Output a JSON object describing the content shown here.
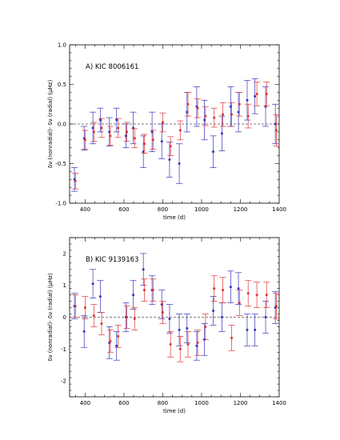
{
  "chart_data": [
    {
      "type": "scatter",
      "panel_label": "A) KIC 8006161",
      "xlabel": "time (d)",
      "ylabel": "δν (nonradial)- δν (radial)  (μHz)",
      "xlim": [
        320,
        1400
      ],
      "ylim": [
        -1.0,
        1.0
      ],
      "x_ticks": [
        400,
        600,
        800,
        1000,
        1200,
        1400
      ],
      "y_ticks": [
        -1.0,
        -0.5,
        0.0,
        0.5,
        1.0
      ],
      "x_tick_labels": [
        "400",
        "600",
        "800",
        "1000",
        "1200",
        "1400"
      ],
      "y_tick_labels": [
        "-1.0",
        "-0.5",
        "0.0",
        "0.5",
        "1.0"
      ],
      "reference_line": 0,
      "series": [
        {
          "color": "#3333bb",
          "points": [
            {
              "x": 345,
              "y": -0.7,
              "err": 0.15
            },
            {
              "x": 395,
              "y": -0.18,
              "err": 0.15
            },
            {
              "x": 440,
              "y": -0.05,
              "err": 0.2
            },
            {
              "x": 478,
              "y": 0.05,
              "err": 0.15
            },
            {
              "x": 525,
              "y": -0.1,
              "err": 0.18
            },
            {
              "x": 562,
              "y": 0.05,
              "err": 0.15
            },
            {
              "x": 610,
              "y": -0.15,
              "err": 0.15
            },
            {
              "x": 648,
              "y": -0.05,
              "err": 0.2
            },
            {
              "x": 700,
              "y": -0.35,
              "err": 0.2
            },
            {
              "x": 745,
              "y": -0.1,
              "err": 0.25
            },
            {
              "x": 795,
              "y": -0.22,
              "err": 0.22
            },
            {
              "x": 835,
              "y": -0.45,
              "err": 0.22
            },
            {
              "x": 885,
              "y": -0.5,
              "err": 0.25
            },
            {
              "x": 925,
              "y": 0.15,
              "err": 0.25
            },
            {
              "x": 975,
              "y": 0.22,
              "err": 0.25
            },
            {
              "x": 1015,
              "y": 0.05,
              "err": 0.25
            },
            {
              "x": 1060,
              "y": -0.35,
              "err": 0.2
            },
            {
              "x": 1105,
              "y": -0.12,
              "err": 0.22
            },
            {
              "x": 1150,
              "y": 0.22,
              "err": 0.25
            },
            {
              "x": 1190,
              "y": 0.15,
              "err": 0.25
            },
            {
              "x": 1235,
              "y": 0.3,
              "err": 0.25
            },
            {
              "x": 1275,
              "y": 0.35,
              "err": 0.22
            },
            {
              "x": 1330,
              "y": 0.22,
              "err": 0.25
            },
            {
              "x": 1380,
              "y": 0.0,
              "err": 0.25
            }
          ]
        },
        {
          "color": "#dd3333",
          "points": [
            {
              "x": 350,
              "y": -0.72,
              "err": 0.1
            },
            {
              "x": 400,
              "y": -0.2,
              "err": 0.12
            },
            {
              "x": 445,
              "y": -0.1,
              "err": 0.12
            },
            {
              "x": 485,
              "y": -0.05,
              "err": 0.12
            },
            {
              "x": 530,
              "y": -0.15,
              "err": 0.12
            },
            {
              "x": 570,
              "y": -0.05,
              "err": 0.12
            },
            {
              "x": 615,
              "y": -0.1,
              "err": 0.12
            },
            {
              "x": 655,
              "y": -0.18,
              "err": 0.12
            },
            {
              "x": 705,
              "y": -0.25,
              "err": 0.12
            },
            {
              "x": 750,
              "y": -0.2,
              "err": 0.12
            },
            {
              "x": 800,
              "y": 0.02,
              "err": 0.12
            },
            {
              "x": 840,
              "y": -0.28,
              "err": 0.12
            },
            {
              "x": 890,
              "y": -0.08,
              "err": 0.12
            },
            {
              "x": 930,
              "y": 0.25,
              "err": 0.15
            },
            {
              "x": 980,
              "y": 0.2,
              "err": 0.12
            },
            {
              "x": 1020,
              "y": 0.1,
              "err": 0.12
            },
            {
              "x": 1065,
              "y": 0.08,
              "err": 0.12
            },
            {
              "x": 1110,
              "y": 0.12,
              "err": 0.15
            },
            {
              "x": 1155,
              "y": 0.12,
              "err": 0.15
            },
            {
              "x": 1195,
              "y": 0.25,
              "err": 0.15
            },
            {
              "x": 1240,
              "y": 0.1,
              "err": 0.15
            },
            {
              "x": 1285,
              "y": 0.38,
              "err": 0.15
            },
            {
              "x": 1335,
              "y": 0.38,
              "err": 0.15
            },
            {
              "x": 1385,
              "y": -0.08,
              "err": 0.2
            }
          ]
        }
      ]
    },
    {
      "type": "scatter",
      "panel_label": "B) KIC 9139163",
      "xlabel": "time (d)",
      "ylabel": "δν (nonradial)- δν (radial)  (μHz)",
      "xlim": [
        320,
        1400
      ],
      "ylim": [
        -2.5,
        2.5
      ],
      "x_ticks": [
        400,
        600,
        800,
        1000,
        1200,
        1400
      ],
      "y_ticks": [
        -2,
        -1,
        0,
        1,
        2
      ],
      "x_tick_labels": [
        "400",
        "600",
        "800",
        "1000",
        "1200",
        "1400"
      ],
      "y_tick_labels": [
        "-2",
        "-1",
        "0",
        "1",
        "2"
      ],
      "reference_line": 0,
      "series": [
        {
          "color": "#3333bb",
          "points": [
            {
              "x": 345,
              "y": 0.35,
              "err": 0.4
            },
            {
              "x": 395,
              "y": -0.45,
              "err": 0.5
            },
            {
              "x": 440,
              "y": 1.05,
              "err": 0.45
            },
            {
              "x": 478,
              "y": 0.65,
              "err": 0.5
            },
            {
              "x": 525,
              "y": -0.8,
              "err": 0.5
            },
            {
              "x": 562,
              "y": -0.9,
              "err": 0.45
            },
            {
              "x": 610,
              "y": 0.0,
              "err": 0.45
            },
            {
              "x": 648,
              "y": 0.7,
              "err": 0.45
            },
            {
              "x": 700,
              "y": 1.5,
              "err": 0.5
            },
            {
              "x": 745,
              "y": 0.85,
              "err": 0.45
            },
            {
              "x": 795,
              "y": 0.4,
              "err": 0.45
            },
            {
              "x": 835,
              "y": -0.05,
              "err": 0.45
            },
            {
              "x": 885,
              "y": -0.4,
              "err": 0.5
            },
            {
              "x": 925,
              "y": -0.35,
              "err": 0.45
            },
            {
              "x": 975,
              "y": -0.9,
              "err": 0.45
            },
            {
              "x": 1015,
              "y": -0.7,
              "err": 0.5
            },
            {
              "x": 1060,
              "y": 0.2,
              "err": 0.45
            },
            {
              "x": 1105,
              "y": 0.0,
              "err": 0.45
            },
            {
              "x": 1150,
              "y": 0.95,
              "err": 0.5
            },
            {
              "x": 1190,
              "y": 0.9,
              "err": 0.5
            },
            {
              "x": 1235,
              "y": -0.4,
              "err": 0.5
            },
            {
              "x": 1275,
              "y": -0.4,
              "err": 0.5
            },
            {
              "x": 1330,
              "y": 0.0,
              "err": 0.5
            },
            {
              "x": 1380,
              "y": 0.3,
              "err": 0.5
            }
          ]
        },
        {
          "color": "#dd3333",
          "points": [
            {
              "x": 350,
              "y": 0.35,
              "err": 0.35
            },
            {
              "x": 400,
              "y": 0.3,
              "err": 0.35
            },
            {
              "x": 445,
              "y": 0.05,
              "err": 0.35
            },
            {
              "x": 485,
              "y": -0.2,
              "err": 0.35
            },
            {
              "x": 530,
              "y": -0.75,
              "err": 0.35
            },
            {
              "x": 570,
              "y": -0.6,
              "err": 0.35
            },
            {
              "x": 615,
              "y": 0.0,
              "err": 0.35
            },
            {
              "x": 655,
              "y": -0.05,
              "err": 0.35
            },
            {
              "x": 705,
              "y": 0.85,
              "err": 0.35
            },
            {
              "x": 750,
              "y": 0.85,
              "err": 0.35
            },
            {
              "x": 800,
              "y": 0.15,
              "err": 0.35
            },
            {
              "x": 840,
              "y": -0.85,
              "err": 0.4
            },
            {
              "x": 890,
              "y": -1.0,
              "err": 0.4
            },
            {
              "x": 930,
              "y": -0.85,
              "err": 0.4
            },
            {
              "x": 980,
              "y": -0.8,
              "err": 0.4
            },
            {
              "x": 1020,
              "y": -0.3,
              "err": 0.4
            },
            {
              "x": 1065,
              "y": 0.9,
              "err": 0.4
            },
            {
              "x": 1110,
              "y": 0.85,
              "err": 0.4
            },
            {
              "x": 1155,
              "y": -0.65,
              "err": 0.4
            },
            {
              "x": 1195,
              "y": 0.45,
              "err": 0.4
            },
            {
              "x": 1240,
              "y": 0.75,
              "err": 0.4
            },
            {
              "x": 1285,
              "y": 0.7,
              "err": 0.4
            },
            {
              "x": 1335,
              "y": 0.7,
              "err": 0.4
            },
            {
              "x": 1385,
              "y": 0.35,
              "err": 0.4
            }
          ]
        }
      ]
    }
  ]
}
